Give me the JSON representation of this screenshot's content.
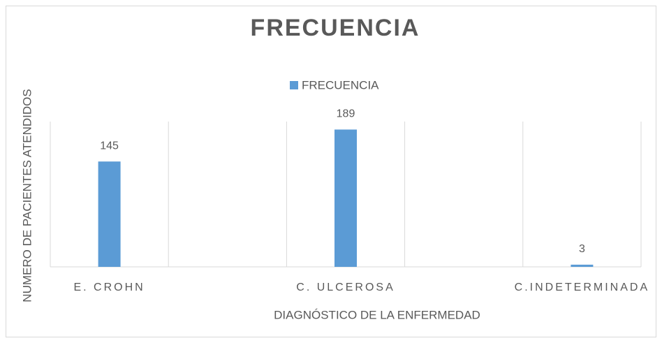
{
  "chart_data": {
    "type": "bar",
    "title": "FRECUENCIA",
    "categories": [
      "E. CROHN",
      "C. ULCEROSA",
      "C.INDETERMINADA"
    ],
    "series": [
      {
        "name": "FRECUENCIA",
        "color": "#5b9bd5",
        "values": [
          145,
          189,
          3
        ]
      }
    ],
    "x_label": "DIAGNÓSTICO DE LA ENFERMEDAD",
    "y_label": "NUMERO DE PACIENTES ATENDIDOS",
    "ylim": [
      0,
      200
    ]
  }
}
